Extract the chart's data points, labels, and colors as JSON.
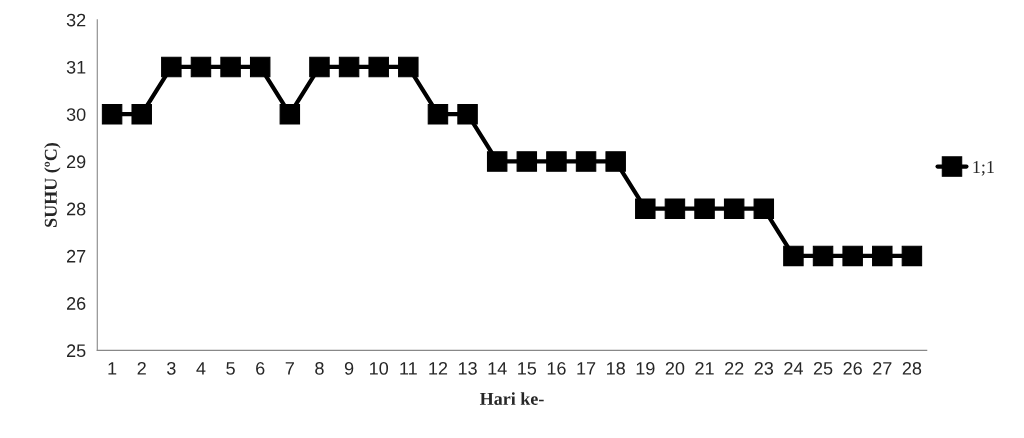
{
  "chart_data": {
    "type": "line",
    "xlabel": "Hari ke-",
    "ylabel": "SUHU (ºC)",
    "categories": [
      "1",
      "2",
      "3",
      "4",
      "5",
      "6",
      "7",
      "8",
      "9",
      "10",
      "11",
      "12",
      "13",
      "14",
      "15",
      "16",
      "17",
      "18",
      "19",
      "20",
      "21",
      "22",
      "23",
      "24",
      "25",
      "26",
      "27",
      "28"
    ],
    "series": [
      {
        "name": "1;1",
        "color": "#000000",
        "values": [
          30,
          30,
          31,
          31,
          31,
          31,
          30,
          31,
          31,
          31,
          31,
          30,
          30,
          29,
          29,
          29,
          29,
          29,
          28,
          28,
          28,
          28,
          28,
          27,
          27,
          27,
          27,
          27
        ]
      }
    ],
    "ylim": [
      25,
      32
    ],
    "yticks": [
      25,
      26,
      27,
      28,
      29,
      30,
      31,
      32
    ],
    "marker": "square",
    "line_style": "solid",
    "legend": "right",
    "grid": false
  }
}
